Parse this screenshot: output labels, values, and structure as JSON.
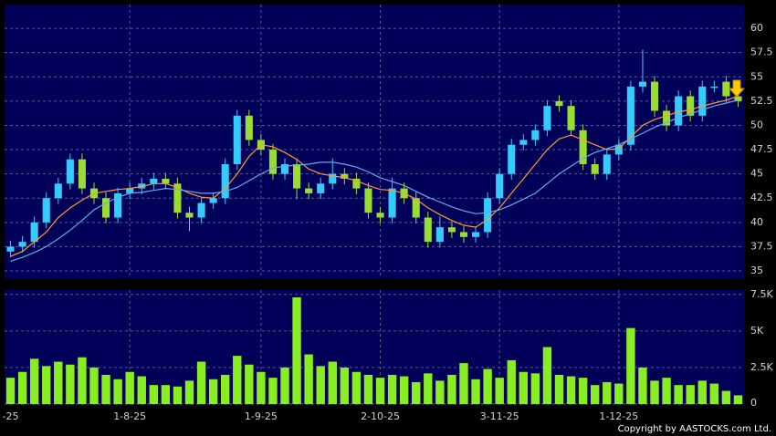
{
  "chart_data": {
    "type": "candlestick",
    "categories": [
      "-25",
      null,
      null,
      null,
      null,
      null,
      null,
      null,
      null,
      null,
      "1-8-25",
      null,
      null,
      null,
      null,
      null,
      null,
      null,
      null,
      null,
      null,
      "1-9-25",
      null,
      null,
      null,
      null,
      null,
      null,
      null,
      null,
      null,
      "2-10-25",
      null,
      null,
      null,
      null,
      null,
      null,
      null,
      null,
      null,
      "3-11-25",
      null,
      null,
      null,
      null,
      null,
      null,
      null,
      null,
      null,
      "1-12-25",
      null,
      null,
      null,
      null,
      null,
      null,
      null,
      null,
      null,
      null
    ],
    "open": [
      37,
      37.5,
      38,
      40,
      42.5,
      44,
      46.5,
      43.5,
      42.5,
      40.5,
      43,
      43.5,
      44,
      44.5,
      44,
      41,
      40.5,
      42,
      42.5,
      46,
      51,
      48.5,
      47.5,
      45,
      46,
      43.5,
      43,
      44,
      45,
      44.5,
      43.5,
      41,
      40.5,
      43.5,
      42.5,
      40.5,
      38,
      39.5,
      39,
      38.5,
      39,
      42.5,
      45,
      48,
      48.5,
      49.5,
      52.5,
      52,
      49.5,
      46,
      45,
      47,
      48,
      54,
      54.5,
      51.5,
      50,
      53,
      51,
      54,
      54.5,
      53
    ],
    "high": [
      38.1,
      38.6,
      40.6,
      43.1,
      44.6,
      47.1,
      47.1,
      44.1,
      43.1,
      43.6,
      44.1,
      44.6,
      45.1,
      45.1,
      44.6,
      41.6,
      42.6,
      43.1,
      46.6,
      51.6,
      51.6,
      49.1,
      48.1,
      46.6,
      46.6,
      44.1,
      44.6,
      46.6,
      45.6,
      45.1,
      44.1,
      41.6,
      44.6,
      44.1,
      43.1,
      41.1,
      40.6,
      40.1,
      39.6,
      39.6,
      43.1,
      45.6,
      48.6,
      49.1,
      50.1,
      52.6,
      53.1,
      52.6,
      50.1,
      46.6,
      47.6,
      48.6,
      54.6,
      57.8,
      55.1,
      52.1,
      53.6,
      53.6,
      54.6,
      54.6,
      55.1,
      53.6
    ],
    "low": [
      36.4,
      36.9,
      37.4,
      39.4,
      41.9,
      43.4,
      42.9,
      41.9,
      39.9,
      39.9,
      42.4,
      42.9,
      43.4,
      43.4,
      40.4,
      39.1,
      39.9,
      41.4,
      41.9,
      45.4,
      47.9,
      46.9,
      44.4,
      44.4,
      42.4,
      42.4,
      42.4,
      43.4,
      43.9,
      42.9,
      40.4,
      39.9,
      39.9,
      41.9,
      39.9,
      37.4,
      37.4,
      38.4,
      37.9,
      37.9,
      38.4,
      41.9,
      44.4,
      47.4,
      47.9,
      48.9,
      51.4,
      48.9,
      45.4,
      44.4,
      44.4,
      46.4,
      47.4,
      53.4,
      50.9,
      49.4,
      49.4,
      50.4,
      50.4,
      53.4,
      52.4,
      51.9
    ],
    "close": [
      37.5,
      38,
      40,
      42.5,
      44,
      46.5,
      43.5,
      42.5,
      40.5,
      43,
      43.5,
      44,
      44.5,
      44,
      41,
      40.5,
      42,
      42.5,
      46,
      51,
      48.5,
      47.5,
      45,
      46,
      43.5,
      43,
      44,
      45,
      44.5,
      43.5,
      41,
      40.5,
      43.5,
      42.5,
      40.5,
      38,
      39.5,
      39,
      38.5,
      39,
      42.5,
      45,
      48,
      48.5,
      49.5,
      52,
      52,
      49.5,
      46,
      45,
      47,
      48,
      54,
      54.5,
      51.5,
      50,
      53,
      51,
      54,
      54,
      53,
      52.5
    ],
    "up_color": "#33ccff",
    "down_color": "#99dd33",
    "series": [
      {
        "color": "#ff9933",
        "values": [
          36.5,
          37,
          38,
          39,
          40.5,
          41.5,
          42.3,
          43,
          43.2,
          43.4,
          43.5,
          43.7,
          44,
          44,
          43.6,
          43,
          42.6,
          42.5,
          43.5,
          45,
          46.8,
          48,
          47.8,
          47.2,
          46.5,
          45.5,
          45,
          44.8,
          44.6,
          44.3,
          43.8,
          43.4,
          43.3,
          43,
          42.4,
          41.5,
          40.8,
          40.2,
          39.7,
          39.5,
          40.3,
          41.5,
          43,
          44.5,
          46,
          47.5,
          48.6,
          49,
          48.5,
          48,
          47.5,
          47.6,
          48.8,
          50,
          50.6,
          51,
          51.4,
          51.6,
          52,
          52.3,
          52.6,
          53
        ]
      },
      {
        "color": "#66aaee",
        "values": [
          36,
          36.4,
          36.9,
          37.5,
          38.3,
          39.2,
          40.2,
          41.3,
          42,
          42.6,
          43,
          43.1,
          43.3,
          43.5,
          43.4,
          43.2,
          43,
          43,
          43.2,
          43.6,
          44.3,
          45,
          45.6,
          45.8,
          45.9,
          46,
          46.2,
          46.2,
          46,
          45.7,
          45.2,
          44.6,
          44.2,
          43.8,
          43.2,
          42.6,
          42.1,
          41.6,
          41.2,
          40.9,
          41,
          41.3,
          41.8,
          42.4,
          43,
          44,
          45,
          45.8,
          46.6,
          47.2,
          47.6,
          48,
          48.6,
          49.2,
          49.8,
          50.3,
          50.8,
          51.2,
          51.6,
          52,
          52.3,
          52.6
        ]
      }
    ],
    "ylim": [
      34.25,
      62.45
    ],
    "yticks": [
      35,
      37.5,
      40,
      42.5,
      45,
      47.5,
      50,
      52.5,
      55,
      57.5,
      60
    ],
    "grid": true,
    "volume": {
      "type": "bar",
      "color": "#88ee22",
      "values": [
        1800,
        2200,
        3100,
        2600,
        2900,
        2700,
        3200,
        2500,
        2000,
        1700,
        2200,
        1900,
        1300,
        1300,
        1200,
        1600,
        2900,
        1700,
        2000,
        3300,
        2700,
        2200,
        1800,
        2500,
        7300,
        3400,
        2600,
        2900,
        2500,
        2200,
        2000,
        1800,
        2000,
        1900,
        1500,
        2100,
        1600,
        2000,
        2800,
        1700,
        2400,
        1800,
        3000,
        2200,
        2100,
        3900,
        2000,
        1900,
        1800,
        1300,
        1500,
        1400,
        5200,
        2500,
        1600,
        1800,
        1300,
        1300,
        1600,
        1400,
        900,
        600
      ],
      "ylim": [
        0,
        7800
      ],
      "yticks": [
        0,
        {
          "value": 2500,
          "label": "2.5K"
        },
        {
          "value": 5000,
          "label": "5K"
        },
        {
          "value": 7500,
          "label": "7.5K"
        }
      ]
    }
  },
  "footer": {
    "copyright": "Copyright by AASTOCKS.com Ltd."
  }
}
